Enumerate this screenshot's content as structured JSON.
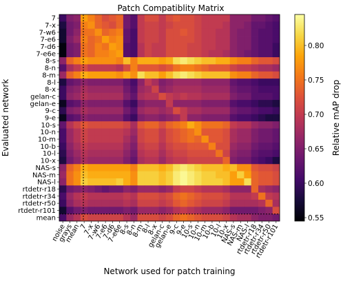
{
  "chart_data": {
    "type": "heatmap",
    "title": "Patch Compatiblity Matrix",
    "xlabel": "Network used for patch training",
    "ylabel": "Evaluated network",
    "colorbar_label": "Relative mAP drop",
    "colorbar_ticks": [
      0.55,
      0.6,
      0.65,
      0.7,
      0.75,
      0.8
    ],
    "vmin": 0.545,
    "vmax": 0.845,
    "colormap": "inferno",
    "x_categories": [
      "noise",
      "grays",
      "mean",
      "7",
      "7-x",
      "7-w6",
      "7-e6",
      "7-d6",
      "7-e6e",
      "8-s",
      "8-n",
      "8-m",
      "8-l",
      "8-x",
      "gelan-c",
      "gelan-e",
      "9-c",
      "9-e",
      "10-s",
      "10-n",
      "10-m",
      "10-b",
      "10-l",
      "10-x",
      "NAS-s",
      "NAS-m",
      "NAS-l",
      "rtdetr-r18",
      "rtdetr-r34",
      "rtdetr-r50",
      "rtdetr-r101"
    ],
    "y_categories": [
      "7",
      "7-x",
      "7-w6",
      "7-e6",
      "7-d6",
      "7-e6e",
      "8-s",
      "8-n",
      "8-m",
      "8-l",
      "8-x",
      "gelan-c",
      "gelan-e",
      "9-c",
      "9-e",
      "10-s",
      "10-n",
      "10-m",
      "10-b",
      "10-l",
      "10-x",
      "NAS-s",
      "NAS-m",
      "NAS-l",
      "rtdetr-r18",
      "rtdetr-r34",
      "rtdetr-r50",
      "rtdetr-r101",
      "mean"
    ],
    "values": [
      [
        0.6,
        0.65,
        0.66,
        0.78,
        0.76,
        0.74,
        0.72,
        0.73,
        0.74,
        0.64,
        0.62,
        0.7,
        0.72,
        0.72,
        0.7,
        0.72,
        0.73,
        0.72,
        0.72,
        0.71,
        0.7,
        0.7,
        0.7,
        0.7,
        0.66,
        0.66,
        0.66,
        0.64,
        0.64,
        0.63,
        0.62
      ],
      [
        0.58,
        0.64,
        0.65,
        0.76,
        0.77,
        0.74,
        0.73,
        0.72,
        0.74,
        0.64,
        0.62,
        0.7,
        0.71,
        0.71,
        0.7,
        0.71,
        0.72,
        0.72,
        0.72,
        0.71,
        0.7,
        0.7,
        0.7,
        0.69,
        0.66,
        0.66,
        0.65,
        0.63,
        0.63,
        0.62,
        0.61
      ],
      [
        0.57,
        0.64,
        0.66,
        0.75,
        0.75,
        0.77,
        0.74,
        0.75,
        0.76,
        0.63,
        0.61,
        0.7,
        0.71,
        0.71,
        0.7,
        0.72,
        0.72,
        0.73,
        0.72,
        0.71,
        0.7,
        0.7,
        0.69,
        0.69,
        0.66,
        0.65,
        0.65,
        0.63,
        0.62,
        0.62,
        0.61
      ],
      [
        0.57,
        0.65,
        0.67,
        0.76,
        0.74,
        0.75,
        0.78,
        0.76,
        0.77,
        0.63,
        0.61,
        0.7,
        0.71,
        0.71,
        0.7,
        0.72,
        0.72,
        0.72,
        0.72,
        0.71,
        0.7,
        0.7,
        0.69,
        0.69,
        0.66,
        0.65,
        0.65,
        0.63,
        0.62,
        0.62,
        0.61
      ],
      [
        0.55,
        0.64,
        0.65,
        0.75,
        0.74,
        0.76,
        0.75,
        0.78,
        0.77,
        0.62,
        0.61,
        0.69,
        0.71,
        0.7,
        0.7,
        0.72,
        0.72,
        0.72,
        0.71,
        0.71,
        0.7,
        0.7,
        0.69,
        0.69,
        0.66,
        0.65,
        0.65,
        0.63,
        0.62,
        0.62,
        0.6
      ],
      [
        0.55,
        0.64,
        0.65,
        0.75,
        0.74,
        0.76,
        0.76,
        0.77,
        0.78,
        0.62,
        0.61,
        0.69,
        0.71,
        0.7,
        0.7,
        0.72,
        0.72,
        0.72,
        0.71,
        0.71,
        0.7,
        0.69,
        0.69,
        0.68,
        0.66,
        0.65,
        0.64,
        0.63,
        0.62,
        0.62,
        0.6
      ],
      [
        0.66,
        0.74,
        0.76,
        0.78,
        0.77,
        0.77,
        0.77,
        0.77,
        0.76,
        0.8,
        0.76,
        0.79,
        0.79,
        0.79,
        0.78,
        0.79,
        0.82,
        0.83,
        0.82,
        0.81,
        0.8,
        0.8,
        0.79,
        0.79,
        0.77,
        0.76,
        0.76,
        0.74,
        0.73,
        0.73,
        0.72
      ],
      [
        0.62,
        0.68,
        0.7,
        0.72,
        0.7,
        0.7,
        0.7,
        0.7,
        0.69,
        0.72,
        0.76,
        0.73,
        0.73,
        0.73,
        0.72,
        0.73,
        0.75,
        0.76,
        0.76,
        0.75,
        0.74,
        0.73,
        0.73,
        0.73,
        0.71,
        0.7,
        0.7,
        0.69,
        0.68,
        0.68,
        0.67
      ],
      [
        0.67,
        0.74,
        0.76,
        0.79,
        0.78,
        0.78,
        0.78,
        0.78,
        0.77,
        0.79,
        0.77,
        0.82,
        0.8,
        0.8,
        0.78,
        0.8,
        0.82,
        0.83,
        0.82,
        0.81,
        0.8,
        0.8,
        0.8,
        0.8,
        0.77,
        0.76,
        0.76,
        0.74,
        0.73,
        0.73,
        0.72
      ],
      [
        0.58,
        0.63,
        0.64,
        0.66,
        0.65,
        0.65,
        0.65,
        0.65,
        0.65,
        0.63,
        0.61,
        0.66,
        0.7,
        0.68,
        0.65,
        0.66,
        0.67,
        0.67,
        0.67,
        0.67,
        0.66,
        0.66,
        0.66,
        0.66,
        0.63,
        0.62,
        0.62,
        0.61,
        0.6,
        0.6,
        0.6
      ],
      [
        0.6,
        0.65,
        0.66,
        0.68,
        0.67,
        0.67,
        0.67,
        0.67,
        0.67,
        0.64,
        0.62,
        0.67,
        0.68,
        0.71,
        0.66,
        0.67,
        0.68,
        0.68,
        0.68,
        0.68,
        0.67,
        0.67,
        0.67,
        0.67,
        0.64,
        0.63,
        0.63,
        0.62,
        0.61,
        0.61,
        0.61
      ],
      [
        0.6,
        0.66,
        0.67,
        0.69,
        0.68,
        0.68,
        0.68,
        0.68,
        0.68,
        0.65,
        0.63,
        0.68,
        0.69,
        0.69,
        0.72,
        0.7,
        0.69,
        0.7,
        0.69,
        0.69,
        0.68,
        0.68,
        0.68,
        0.68,
        0.65,
        0.64,
        0.64,
        0.62,
        0.62,
        0.62,
        0.61
      ],
      [
        0.56,
        0.62,
        0.63,
        0.66,
        0.65,
        0.65,
        0.65,
        0.65,
        0.65,
        0.62,
        0.6,
        0.65,
        0.66,
        0.66,
        0.66,
        0.7,
        0.66,
        0.66,
        0.66,
        0.66,
        0.65,
        0.65,
        0.65,
        0.65,
        0.62,
        0.61,
        0.61,
        0.6,
        0.59,
        0.59,
        0.58
      ],
      [
        0.59,
        0.65,
        0.66,
        0.68,
        0.67,
        0.67,
        0.67,
        0.67,
        0.67,
        0.64,
        0.62,
        0.67,
        0.68,
        0.68,
        0.67,
        0.68,
        0.72,
        0.7,
        0.68,
        0.68,
        0.67,
        0.67,
        0.67,
        0.67,
        0.64,
        0.63,
        0.63,
        0.62,
        0.61,
        0.61,
        0.6
      ],
      [
        0.56,
        0.62,
        0.63,
        0.66,
        0.65,
        0.65,
        0.65,
        0.65,
        0.65,
        0.62,
        0.6,
        0.65,
        0.66,
        0.66,
        0.65,
        0.66,
        0.67,
        0.7,
        0.66,
        0.66,
        0.65,
        0.65,
        0.65,
        0.65,
        0.62,
        0.61,
        0.61,
        0.6,
        0.59,
        0.58,
        0.58
      ],
      [
        0.63,
        0.69,
        0.71,
        0.73,
        0.72,
        0.72,
        0.72,
        0.72,
        0.72,
        0.71,
        0.68,
        0.73,
        0.74,
        0.74,
        0.72,
        0.74,
        0.75,
        0.76,
        0.79,
        0.77,
        0.75,
        0.75,
        0.75,
        0.74,
        0.7,
        0.69,
        0.69,
        0.67,
        0.66,
        0.66,
        0.65
      ],
      [
        0.61,
        0.67,
        0.69,
        0.71,
        0.7,
        0.7,
        0.7,
        0.7,
        0.7,
        0.69,
        0.67,
        0.71,
        0.72,
        0.72,
        0.7,
        0.72,
        0.73,
        0.74,
        0.75,
        0.77,
        0.73,
        0.73,
        0.73,
        0.72,
        0.68,
        0.67,
        0.67,
        0.65,
        0.64,
        0.64,
        0.63
      ],
      [
        0.61,
        0.67,
        0.69,
        0.71,
        0.7,
        0.7,
        0.7,
        0.7,
        0.7,
        0.68,
        0.66,
        0.71,
        0.72,
        0.72,
        0.7,
        0.72,
        0.73,
        0.74,
        0.75,
        0.74,
        0.77,
        0.73,
        0.73,
        0.72,
        0.68,
        0.67,
        0.67,
        0.65,
        0.64,
        0.64,
        0.63
      ],
      [
        0.6,
        0.66,
        0.68,
        0.7,
        0.69,
        0.69,
        0.69,
        0.69,
        0.69,
        0.67,
        0.65,
        0.7,
        0.71,
        0.71,
        0.69,
        0.71,
        0.72,
        0.72,
        0.73,
        0.73,
        0.73,
        0.76,
        0.72,
        0.72,
        0.67,
        0.66,
        0.66,
        0.64,
        0.63,
        0.63,
        0.62
      ],
      [
        0.59,
        0.65,
        0.67,
        0.69,
        0.68,
        0.68,
        0.68,
        0.68,
        0.68,
        0.66,
        0.64,
        0.69,
        0.7,
        0.7,
        0.68,
        0.7,
        0.71,
        0.71,
        0.72,
        0.72,
        0.72,
        0.72,
        0.75,
        0.71,
        0.66,
        0.65,
        0.65,
        0.63,
        0.62,
        0.62,
        0.61
      ],
      [
        0.58,
        0.64,
        0.66,
        0.68,
        0.67,
        0.67,
        0.67,
        0.67,
        0.67,
        0.65,
        0.63,
        0.68,
        0.69,
        0.69,
        0.67,
        0.69,
        0.7,
        0.7,
        0.71,
        0.71,
        0.71,
        0.71,
        0.71,
        0.74,
        0.65,
        0.64,
        0.64,
        0.62,
        0.61,
        0.6,
        0.58
      ],
      [
        0.66,
        0.74,
        0.76,
        0.79,
        0.78,
        0.78,
        0.78,
        0.78,
        0.78,
        0.78,
        0.76,
        0.8,
        0.8,
        0.8,
        0.79,
        0.8,
        0.82,
        0.83,
        0.82,
        0.81,
        0.8,
        0.8,
        0.8,
        0.79,
        0.8,
        0.77,
        0.77,
        0.73,
        0.72,
        0.72,
        0.71
      ],
      [
        0.67,
        0.75,
        0.77,
        0.8,
        0.79,
        0.79,
        0.79,
        0.79,
        0.79,
        0.79,
        0.77,
        0.81,
        0.81,
        0.81,
        0.8,
        0.81,
        0.83,
        0.84,
        0.83,
        0.82,
        0.81,
        0.81,
        0.8,
        0.8,
        0.78,
        0.81,
        0.78,
        0.74,
        0.73,
        0.73,
        0.72
      ],
      [
        0.66,
        0.75,
        0.77,
        0.81,
        0.8,
        0.8,
        0.8,
        0.8,
        0.81,
        0.79,
        0.77,
        0.81,
        0.81,
        0.81,
        0.8,
        0.81,
        0.83,
        0.84,
        0.83,
        0.82,
        0.81,
        0.81,
        0.81,
        0.8,
        0.78,
        0.78,
        0.82,
        0.74,
        0.73,
        0.73,
        0.72
      ],
      [
        0.59,
        0.64,
        0.65,
        0.66,
        0.65,
        0.64,
        0.63,
        0.64,
        0.64,
        0.66,
        0.65,
        0.67,
        0.67,
        0.67,
        0.66,
        0.67,
        0.7,
        0.71,
        0.71,
        0.7,
        0.69,
        0.69,
        0.69,
        0.68,
        0.66,
        0.66,
        0.66,
        0.74,
        0.68,
        0.67,
        0.66
      ],
      [
        0.61,
        0.67,
        0.69,
        0.7,
        0.69,
        0.69,
        0.69,
        0.69,
        0.69,
        0.7,
        0.69,
        0.72,
        0.72,
        0.72,
        0.71,
        0.72,
        0.74,
        0.75,
        0.74,
        0.73,
        0.72,
        0.72,
        0.72,
        0.71,
        0.69,
        0.69,
        0.69,
        0.7,
        0.75,
        0.7,
        0.69
      ],
      [
        0.6,
        0.66,
        0.68,
        0.69,
        0.68,
        0.68,
        0.68,
        0.68,
        0.68,
        0.69,
        0.68,
        0.71,
        0.71,
        0.71,
        0.7,
        0.71,
        0.73,
        0.74,
        0.73,
        0.72,
        0.71,
        0.71,
        0.71,
        0.7,
        0.68,
        0.68,
        0.68,
        0.68,
        0.69,
        0.74,
        0.68
      ],
      [
        0.57,
        0.62,
        0.64,
        0.65,
        0.64,
        0.64,
        0.64,
        0.64,
        0.64,
        0.65,
        0.64,
        0.67,
        0.67,
        0.67,
        0.66,
        0.67,
        0.69,
        0.7,
        0.69,
        0.68,
        0.67,
        0.67,
        0.67,
        0.66,
        0.64,
        0.64,
        0.64,
        0.64,
        0.65,
        0.66,
        0.72
      ],
      [
        0.61,
        0.67,
        0.69,
        0.72,
        0.71,
        0.71,
        0.71,
        0.71,
        0.71,
        0.69,
        0.67,
        0.72,
        0.72,
        0.72,
        0.71,
        0.72,
        0.74,
        0.75,
        0.74,
        0.73,
        0.72,
        0.72,
        0.72,
        0.71,
        0.69,
        0.68,
        0.68,
        0.66,
        0.65,
        0.65,
        0.64
      ]
    ]
  }
}
